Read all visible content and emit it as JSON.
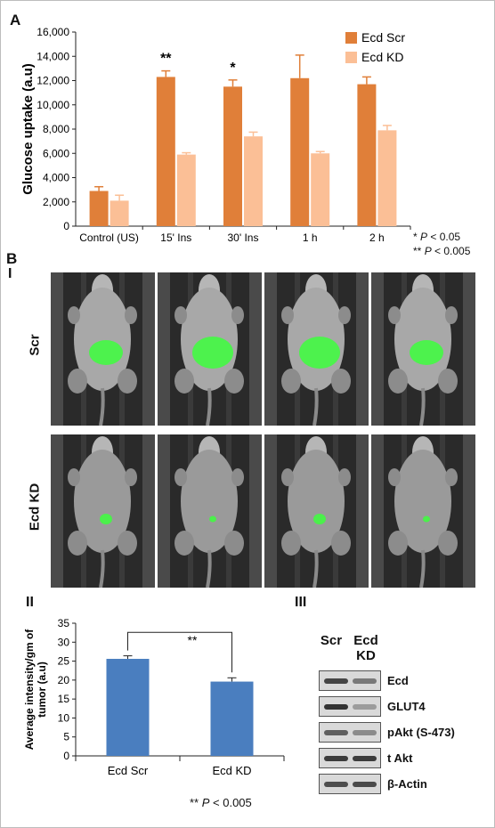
{
  "panel_a": {
    "letter": "A",
    "pvalue_1": {
      "stars": "*",
      "p": "P",
      "rest": " < 0.05"
    },
    "pvalue_2": {
      "stars": "**",
      "p": "P",
      "rest": " < 0.005"
    }
  },
  "panel_b": {
    "letter": "B",
    "sub_i": "I",
    "row_scr": "Scr",
    "row_kd": "Ecd KD",
    "sub_ii": "II",
    "sub_iii": "III",
    "pvalue": {
      "stars": "**",
      "p": "P",
      "rest": " < 0.005"
    },
    "blot": {
      "col_scr": "Scr",
      "col_kd_1": "Ecd",
      "col_kd_2": "KD",
      "bands": [
        {
          "label": "Ecd",
          "scr": 0.75,
          "kd": 0.45
        },
        {
          "label": "GLUT4",
          "scr": 0.85,
          "kd": 0.25
        },
        {
          "label": "pAkt (S-473)",
          "scr": 0.6,
          "kd": 0.35
        },
        {
          "label": "t Akt",
          "scr": 0.8,
          "kd": 0.8
        },
        {
          "label": "β-Actin",
          "scr": 0.7,
          "kd": 0.72
        }
      ]
    },
    "mice": {
      "scr": [
        {
          "signal": "medium"
        },
        {
          "signal": "high"
        },
        {
          "signal": "high"
        },
        {
          "signal": "medium"
        }
      ],
      "kd": [
        {
          "signal": "low"
        },
        {
          "signal": "trace"
        },
        {
          "signal": "low"
        },
        {
          "signal": "trace"
        }
      ],
      "fluorescence_color": "#3dff3d"
    }
  },
  "chart_data": [
    {
      "type": "bar",
      "title": "",
      "xlabel": "",
      "ylabel": "Glucose uptake (a.u)",
      "ylim": [
        0,
        16000
      ],
      "yticks": [
        "0",
        "2,000",
        "4,000",
        "6,000",
        "8,000",
        "10,000",
        "12,000",
        "14,000",
        "16,000"
      ],
      "categories": [
        "Control (US)",
        "15' Ins",
        "30' Ins",
        "1 h",
        "2 h"
      ],
      "series": [
        {
          "name": "Ecd Scr",
          "color": "#e07f39",
          "values": [
            2900,
            12300,
            11500,
            12200,
            11700
          ],
          "errors": [
            350,
            500,
            550,
            1900,
            600
          ]
        },
        {
          "name": "Ecd KD",
          "color": "#fbbf96",
          "values": [
            2100,
            5900,
            7400,
            6000,
            7900
          ],
          "errors": [
            450,
            150,
            350,
            150,
            400
          ]
        }
      ],
      "annotations": [
        {
          "category_index": 1,
          "text": "**"
        },
        {
          "category_index": 2,
          "text": "*"
        }
      ],
      "legend": "top-right",
      "grid": false
    },
    {
      "type": "bar",
      "title": "",
      "xlabel": "",
      "ylabel_1": "Average intensity/gm of",
      "ylabel_2": "tumor (a.u)",
      "ylim": [
        0,
        35
      ],
      "yticks": [
        "0",
        "5",
        "10",
        "15",
        "20",
        "25",
        "30",
        "35"
      ],
      "categories": [
        "Ecd Scr",
        "Ecd KD"
      ],
      "values": [
        25.6,
        19.6
      ],
      "errors": [
        0.8,
        1.0
      ],
      "color": "#4a7ebf",
      "significance": "**",
      "grid": false
    }
  ]
}
